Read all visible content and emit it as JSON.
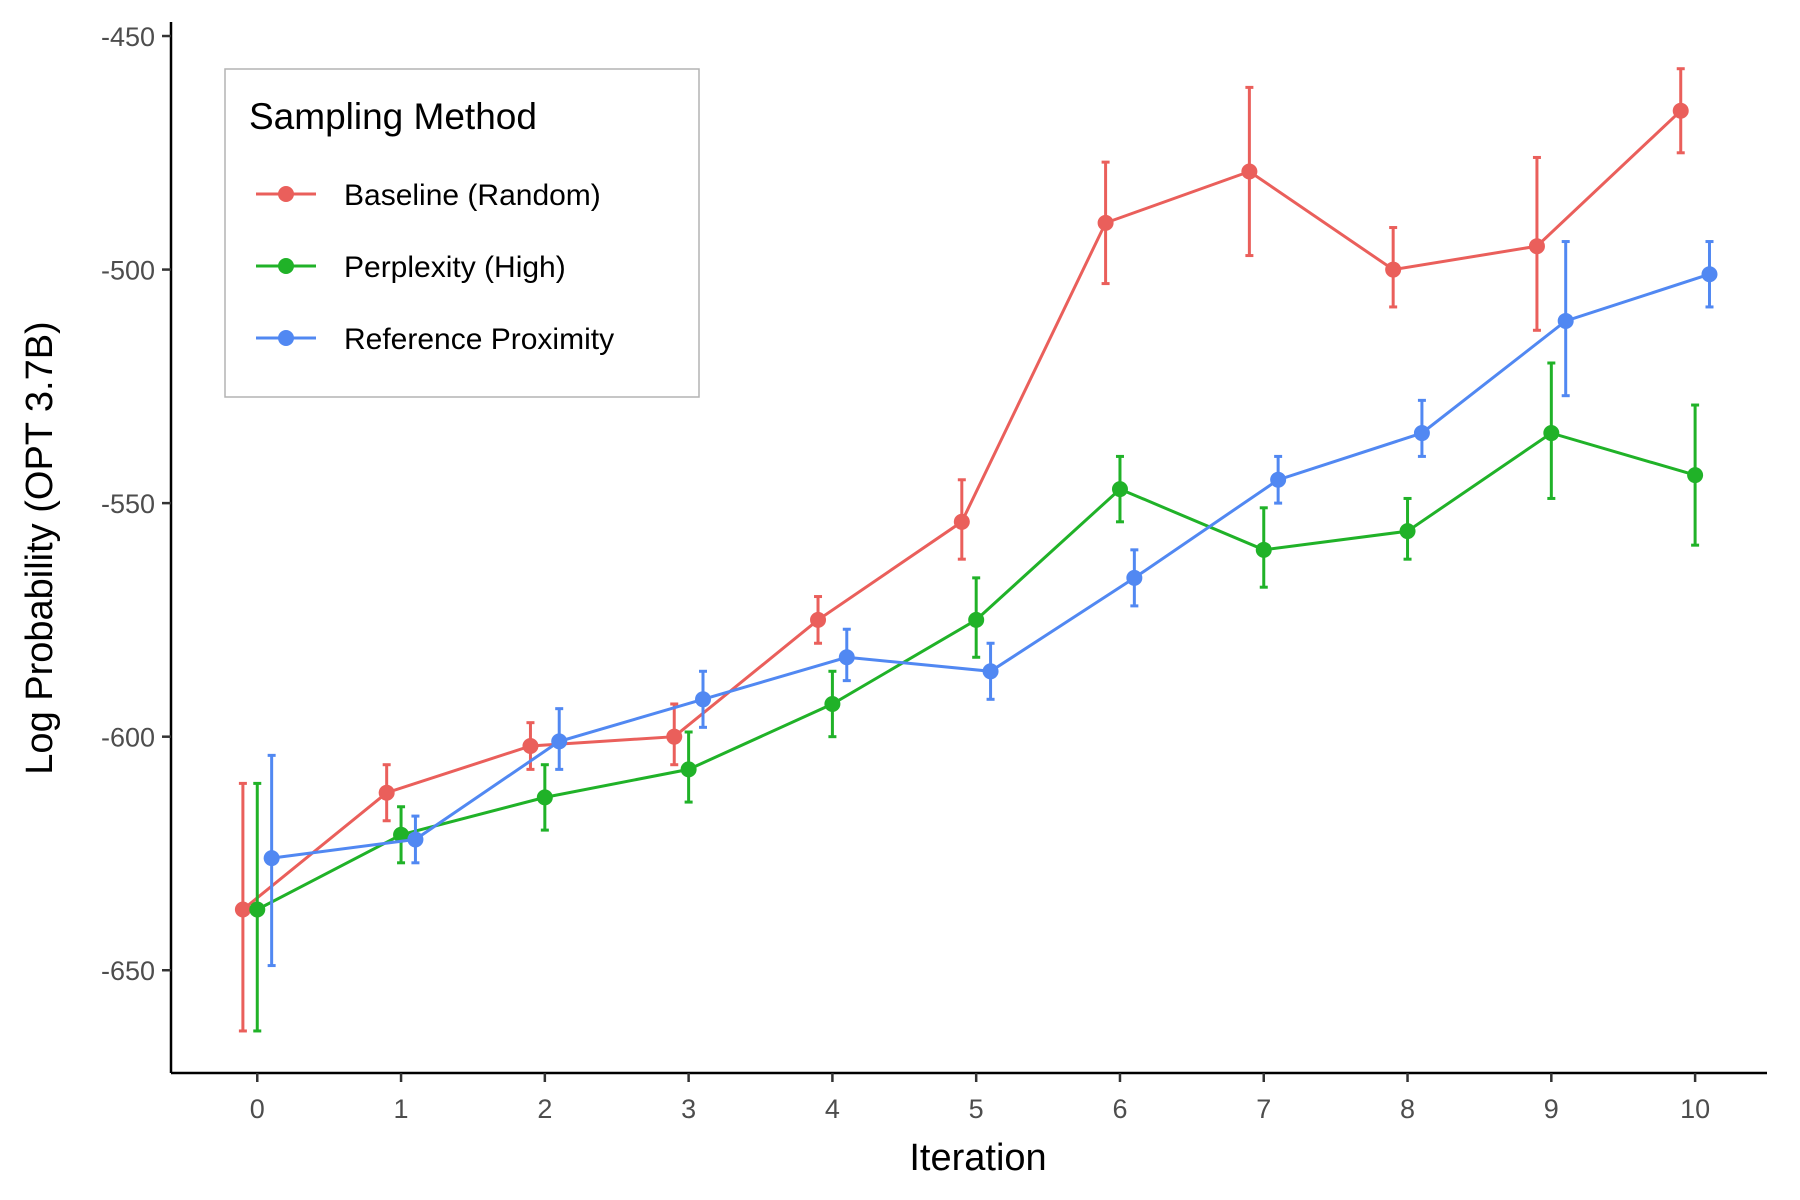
{
  "chart_data": {
    "type": "line",
    "xlabel": "Iteration",
    "ylabel": "Log Probability (OPT 3.7B)",
    "ylim": [
      -672,
      -447
    ],
    "xlim": [
      -0.6,
      10.5
    ],
    "x_ticks": [
      0,
      1,
      2,
      3,
      4,
      5,
      6,
      7,
      8,
      9,
      10
    ],
    "y_ticks": [
      -450,
      -500,
      -550,
      -600,
      -650
    ],
    "x": [
      0,
      1,
      2,
      3,
      4,
      5,
      6,
      7,
      8,
      9,
      10
    ],
    "grid": false,
    "error_bars": true,
    "legend": {
      "title": "Sampling Method",
      "position": "top-left"
    },
    "series": [
      {
        "name": "Baseline (Random)",
        "color": "#ea5f5b",
        "values": [
          -637,
          -612,
          -602,
          -600,
          -575,
          -554,
          -490,
          -479,
          -500,
          -495,
          -466
        ],
        "err_lower": [
          -663,
          -618,
          -607,
          -606,
          -580,
          -562,
          -503,
          -497,
          -508,
          -513,
          -475
        ],
        "err_upper": [
          -610,
          -606,
          -597,
          -593,
          -570,
          -545,
          -477,
          -461,
          -491,
          -476,
          -457
        ]
      },
      {
        "name": "Perplexity (High)",
        "color": "#20b228",
        "values": [
          -637,
          -621,
          -613,
          -607,
          -593,
          -575,
          -547,
          -560,
          -556,
          -535,
          -544
        ],
        "err_lower": [
          -663,
          -627,
          -620,
          -614,
          -600,
          -583,
          -554,
          -568,
          -562,
          -549,
          -559
        ],
        "err_upper": [
          -610,
          -615,
          -606,
          -599,
          -586,
          -566,
          -540,
          -551,
          -549,
          -520,
          -529
        ]
      },
      {
        "name": "Reference Proximity",
        "color": "#5188f2",
        "values": [
          -626,
          -622,
          -601,
          -592,
          -583,
          -586,
          -566,
          -545,
          -535,
          -511,
          -501
        ],
        "err_lower": [
          -649,
          -627,
          -607,
          -598,
          -588,
          -592,
          -572,
          -550,
          -540,
          -527,
          -508
        ],
        "err_upper": [
          -604,
          -617,
          -594,
          -586,
          -577,
          -580,
          -560,
          -540,
          -528,
          -494,
          -494
        ]
      }
    ]
  }
}
